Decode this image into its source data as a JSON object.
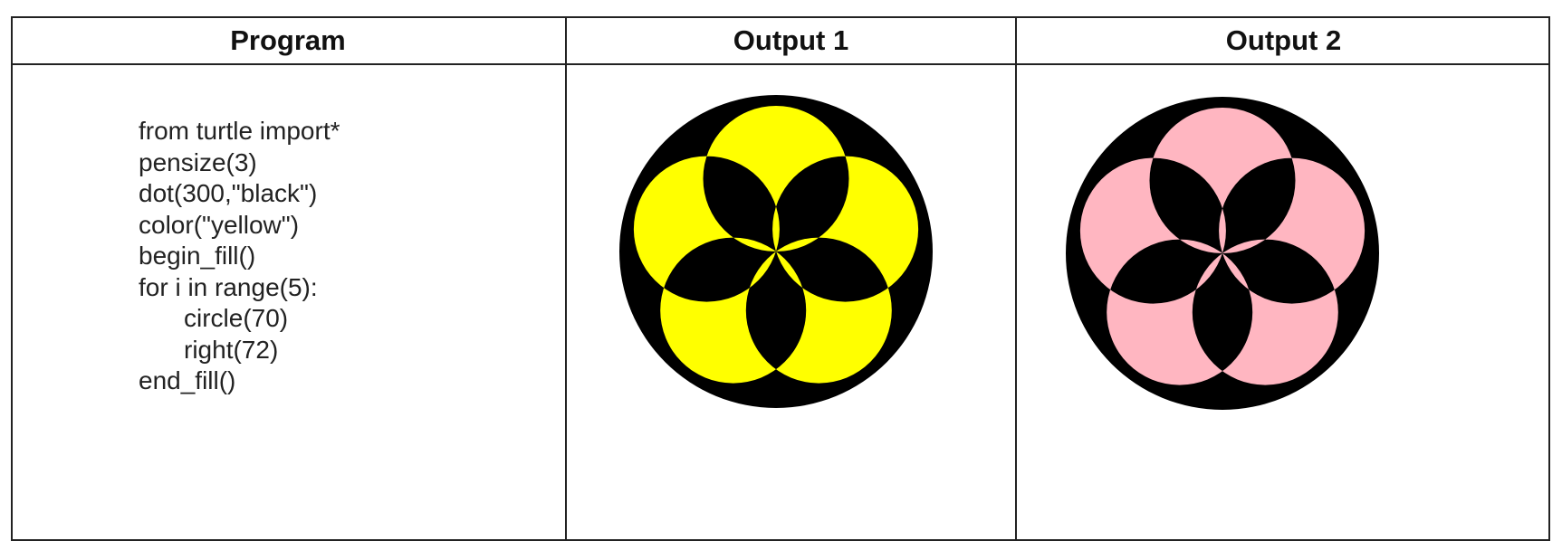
{
  "table": {
    "headers": [
      "Program",
      "Output 1",
      "Output 2"
    ],
    "program_lines": [
      "from turtle import*",
      "pensize(3)",
      "dot(300,\"black\")",
      "color(\"yellow\")",
      "begin_fill()",
      "for i in range(5):",
      "circle(70)",
      "right(72)",
      "end_fill()"
    ]
  }
}
